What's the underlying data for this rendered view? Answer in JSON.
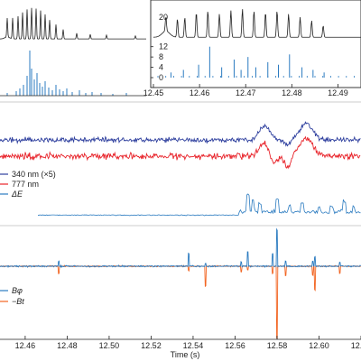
{
  "chart_data": [
    {
      "panel": "a-left",
      "type": "line",
      "series": [
        {
          "role": "light-curve",
          "color": "#222222"
        },
        {
          "role": "delta-e-bars",
          "color": "#2b7bc0"
        }
      ]
    },
    {
      "panel": "a-zoom",
      "type": "line",
      "x": [
        12.45,
        12.46,
        12.47,
        12.48,
        12.49
      ],
      "x_tick_labels": [
        "12.45",
        "12.46",
        "12.47",
        "12.48",
        "12.49"
      ],
      "xlim": [
        12.45,
        12.495
      ],
      "inset_ylabel": "20",
      "lower_y_ticks": [
        "12",
        "8",
        "4",
        "0"
      ],
      "lower_ylim": [
        0,
        14
      ],
      "pulse_times": [
        12.4527,
        12.4552,
        12.4568,
        12.4593,
        12.4618,
        12.4643,
        12.4668,
        12.4693,
        12.4718,
        12.4743,
        12.4768,
        12.4793,
        12.4818,
        12.4843,
        12.4868
      ],
      "pulse_heights": [
        0.45,
        0.55,
        0.6,
        0.75,
        0.8,
        0.7,
        0.8,
        0.85,
        0.8,
        0.75,
        0.8,
        0.7,
        0.6,
        0.5,
        0.35
      ],
      "delta_e_bars": [
        {
          "x": 12.4538,
          "y": 2
        },
        {
          "x": 12.4565,
          "y": 3
        },
        {
          "x": 12.4598,
          "y": 5
        },
        {
          "x": 12.4622,
          "y": 12
        },
        {
          "x": 12.4648,
          "y": 4
        },
        {
          "x": 12.4675,
          "y": 7
        },
        {
          "x": 12.469,
          "y": 3
        },
        {
          "x": 12.4705,
          "y": 8
        },
        {
          "x": 12.4722,
          "y": 4
        },
        {
          "x": 12.4748,
          "y": 6
        },
        {
          "x": 12.4771,
          "y": 5
        },
        {
          "x": 12.4795,
          "y": 9
        },
        {
          "x": 12.4822,
          "y": 4
        },
        {
          "x": 12.4846,
          "y": 3
        },
        {
          "x": 12.487,
          "y": 2
        }
      ]
    },
    {
      "panel": "b",
      "type": "line",
      "legend": [
        "340 nm (×5)",
        "777 nm",
        "ΔE"
      ],
      "legend_position": "lower-left",
      "series": [
        {
          "name": "340 nm (×5)",
          "color": "#2e3f9e"
        },
        {
          "name": "777 nm",
          "color": "#e8232a"
        },
        {
          "name": "ΔE",
          "color": "#2b7bc0"
        }
      ],
      "bumps": [
        12.574,
        12.594
      ]
    },
    {
      "panel": "c",
      "type": "line",
      "legend": [
        "Bφ",
        "−Bt"
      ],
      "legend_position": "lower-left",
      "series": [
        {
          "name": "Bφ",
          "color": "#2b7bc0"
        },
        {
          "name": "−Bt",
          "color": "#f26522"
        }
      ],
      "spikes": [
        {
          "x": 12.476,
          "bphi": 6,
          "bt": -8
        },
        {
          "x": 12.538,
          "bphi": 14,
          "bt": -5
        },
        {
          "x": 12.546,
          "bphi": 3,
          "bt": -22
        },
        {
          "x": 12.563,
          "bphi": 5,
          "bt": -6
        },
        {
          "x": 12.566,
          "bphi": 16,
          "bt": -4
        },
        {
          "x": 12.578,
          "bphi": 14,
          "bt": -8
        },
        {
          "x": 12.58,
          "bphi": 40,
          "bt": -80
        },
        {
          "x": 12.584,
          "bphi": 6,
          "bt": -10
        },
        {
          "x": 12.597,
          "bphi": 6,
          "bt": -10
        },
        {
          "x": 12.598,
          "bphi": 10,
          "bt": -26
        },
        {
          "x": 12.61,
          "bphi": 4,
          "bt": -8
        }
      ]
    },
    {
      "panel": "x-axis",
      "type": "line",
      "xlabel": "Time (s)",
      "x": [
        12.46,
        12.48,
        12.5,
        12.52,
        12.54,
        12.56,
        12.58,
        12.6,
        12.62
      ],
      "x_tick_labels": [
        "12.46",
        "12.48",
        "12.50",
        "12.52",
        "12.54",
        "12.56",
        "12.58",
        "12.60",
        "12.62"
      ],
      "xlim": [
        12.448,
        12.62
      ],
      "grid": false
    }
  ]
}
